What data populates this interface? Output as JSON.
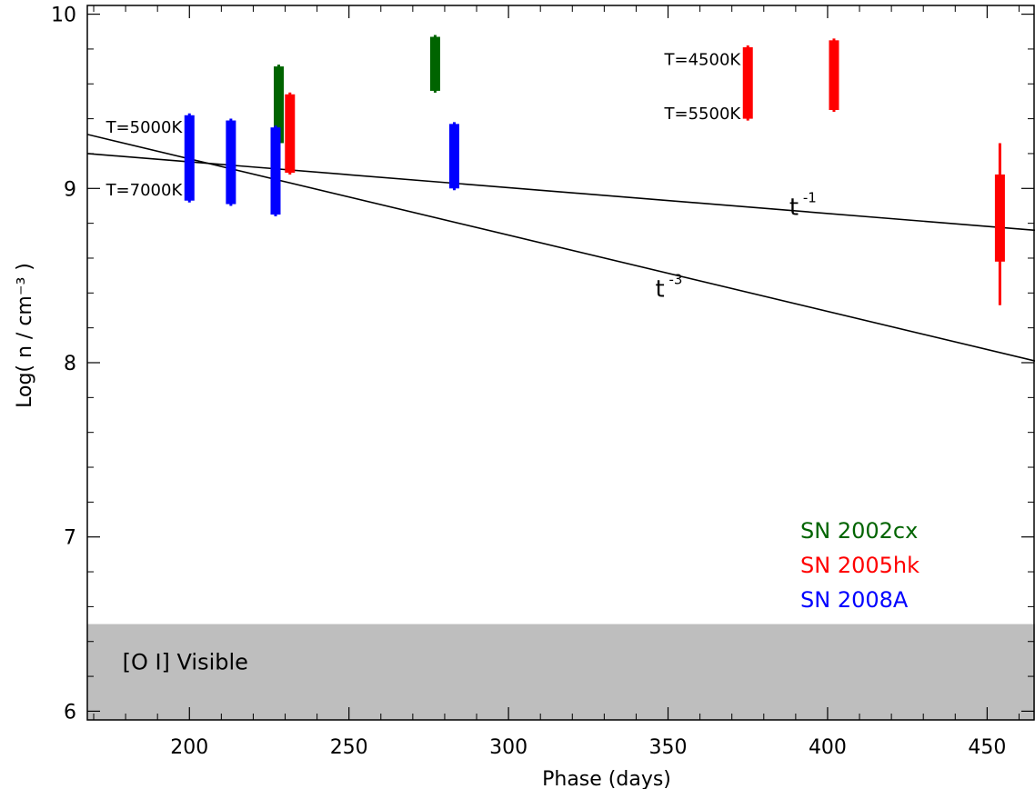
{
  "chart_data": {
    "type": "errorbar",
    "xlabel": "Phase (days)",
    "ylabel": "Log( n / cm⁻³ )",
    "xlim": [
      168,
      465
    ],
    "ylim": [
      5.95,
      10.05
    ],
    "xticks": [
      200,
      250,
      300,
      350,
      400,
      450
    ],
    "yticks": [
      6,
      7,
      8,
      9,
      10
    ],
    "band": {
      "y": [
        5.95,
        6.5
      ],
      "color": "#bebebe",
      "label": "[O I] Visible"
    },
    "series": [
      {
        "name": "SN 2002cx",
        "color": "#006400",
        "points": [
          {
            "x": 228,
            "low": 9.26,
            "high": 9.7
          },
          {
            "x": 277,
            "low": 9.56,
            "high": 9.87
          }
        ]
      },
      {
        "name": "SN 2005hk",
        "color": "#ff0000",
        "points": [
          {
            "x": 231.5,
            "low": 9.09,
            "high": 9.54
          },
          {
            "x": 375,
            "low": 9.4,
            "high": 9.81
          },
          {
            "x": 402,
            "low": 9.45,
            "high": 9.85,
            "labels": []
          },
          {
            "x": 454,
            "low": 8.33,
            "high": 9.26,
            "box_low": 8.58,
            "box_high": 9.08
          }
        ]
      },
      {
        "name": "SN 2008A",
        "color": "#0000ff",
        "points": [
          {
            "x": 200,
            "low": 8.93,
            "high": 9.42
          },
          {
            "x": 213,
            "low": 8.91,
            "high": 9.39
          },
          {
            "x": 227,
            "low": 8.85,
            "high": 9.35
          },
          {
            "x": 283,
            "low": 9.0,
            "high": 9.37
          }
        ]
      }
    ],
    "lines": [
      {
        "label": "t",
        "exponent": "-1",
        "x": [
          168,
          465
        ],
        "y": [
          9.2,
          8.76
        ]
      },
      {
        "label": "t",
        "exponent": "-3",
        "x": [
          168,
          465
        ],
        "y": [
          9.31,
          8.01
        ]
      }
    ],
    "annotations": [
      {
        "text": "T=5000K",
        "x": 200,
        "y": 9.35,
        "anchor": "end"
      },
      {
        "text": "T=7000K",
        "x": 200,
        "y": 8.99,
        "anchor": "end"
      },
      {
        "text": "T=4500K",
        "x": 375,
        "y": 9.74,
        "anchor": "end"
      },
      {
        "text": "T=5500K",
        "x": 375,
        "y": 9.43,
        "anchor": "end"
      }
    ],
    "legend": {
      "placement": "bottom-right",
      "entries": [
        {
          "text": "SN 2002cx",
          "color": "#006400"
        },
        {
          "text": "SN 2005hk",
          "color": "#ff0000"
        },
        {
          "text": "SN 2008A",
          "color": "#0000ff"
        }
      ]
    }
  }
}
